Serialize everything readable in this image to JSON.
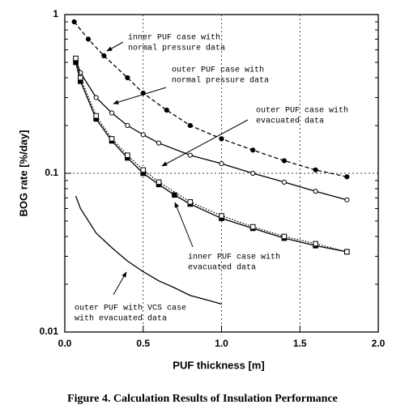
{
  "chart_data": {
    "type": "line",
    "caption": "Figure 4. Calculation Results of Insulation Performance",
    "x_label": "PUF thickness [m]",
    "y_label": "BOG rate [%/day]",
    "log_y": true,
    "grid": true,
    "xlim": [
      0,
      2
    ],
    "ylim": [
      0.01,
      1
    ],
    "xticks": [
      {
        "value": 0,
        "label": "0.0"
      },
      0.5,
      {
        "value": 1,
        "label": "1.0"
      },
      1.5,
      {
        "value": 2,
        "label": "2.0"
      }
    ],
    "yticks": [
      0.01,
      0.1,
      1
    ],
    "series": [
      {
        "name": "inner PUF case with normal pressure data",
        "color": "#000000",
        "marker": "filled-circle",
        "line": "dashed",
        "x": [
          0.06,
          0.15,
          0.25,
          0.4,
          0.5,
          0.65,
          0.8,
          1.0,
          1.2,
          1.4,
          1.6,
          1.8
        ],
        "values": [
          0.9,
          0.7,
          0.55,
          0.4,
          0.32,
          0.25,
          0.2,
          0.165,
          0.14,
          0.12,
          0.105,
          0.095
        ]
      },
      {
        "name": "outer PUF case with normal pressure data",
        "color": "#000000",
        "marker": "open-circle",
        "line": "solid",
        "x": [
          0.07,
          0.1,
          0.2,
          0.3,
          0.4,
          0.5,
          0.6,
          0.8,
          1.0,
          1.2,
          1.4,
          1.6,
          1.8
        ],
        "values": [
          0.52,
          0.43,
          0.3,
          0.24,
          0.2,
          0.175,
          0.155,
          0.13,
          0.115,
          0.1,
          0.088,
          0.077,
          0.068
        ]
      },
      {
        "name": "outer PUF case with evacuated data",
        "color": "#000000",
        "marker": "filled-square",
        "line": "solid",
        "x": [
          0.07,
          0.1,
          0.2,
          0.3,
          0.4,
          0.5,
          0.6,
          0.7,
          0.8,
          1.0,
          1.2,
          1.4,
          1.6,
          1.8
        ],
        "values": [
          0.5,
          0.38,
          0.22,
          0.16,
          0.125,
          0.1,
          0.085,
          0.073,
          0.064,
          0.052,
          0.045,
          0.039,
          0.035,
          0.032
        ]
      },
      {
        "name": "inner PUF case with evacuated data",
        "color": "#000000",
        "marker": "open-square",
        "line": "dotted",
        "x": [
          0.07,
          0.1,
          0.2,
          0.3,
          0.4,
          0.5,
          0.6,
          0.8,
          1.0,
          1.2,
          1.4,
          1.6,
          1.8
        ],
        "values": [
          0.53,
          0.4,
          0.23,
          0.165,
          0.13,
          0.105,
          0.088,
          0.066,
          0.054,
          0.046,
          0.04,
          0.036,
          0.032
        ]
      },
      {
        "name": "outer PUF with VCS case with evacuated data",
        "color": "#000000",
        "marker": "none",
        "line": "solid",
        "x": [
          0.07,
          0.1,
          0.2,
          0.3,
          0.4,
          0.5,
          0.6,
          0.7,
          0.8,
          0.9,
          1.0
        ],
        "values": [
          0.072,
          0.06,
          0.042,
          0.034,
          0.028,
          0.024,
          0.021,
          0.019,
          0.017,
          0.016,
          0.015
        ]
      }
    ],
    "annotations": [
      [
        "inner PUF case with",
        "normal pressure data"
      ],
      [
        "outer PUF case with",
        "normal pressure data"
      ],
      [
        "outer PUF case with",
        "evacuated data"
      ],
      [
        "inner PUF case with",
        "evacuated data"
      ],
      [
        "outer PUF with VCS case",
        "with evacuated data"
      ]
    ]
  }
}
